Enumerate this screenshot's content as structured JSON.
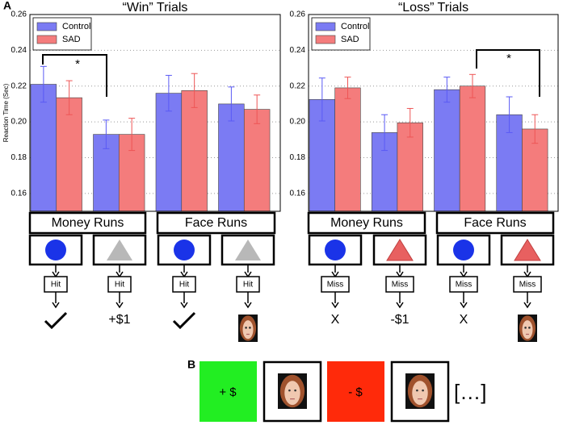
{
  "chart_data": [
    {
      "type": "bar",
      "title": "“Win” Trials",
      "y_label": "Reaction Time (Sec)",
      "categories": [
        null,
        null,
        null,
        null
      ],
      "series": [
        {
          "name": "Control",
          "color": "#7b7bf3",
          "error_color": "#5a5af5",
          "values": [
            0.221,
            0.193,
            0.216,
            0.21
          ],
          "errors": [
            0.01,
            0.008,
            0.01,
            0.0095
          ]
        },
        {
          "name": "SAD",
          "color": "#f47c7c",
          "error_color": "#ee5555",
          "values": [
            0.2135,
            0.193,
            0.2175,
            0.207
          ],
          "errors": [
            0.0095,
            0.009,
            0.0095,
            0.008
          ]
        }
      ],
      "ylim": [
        0.15,
        0.26
      ],
      "yticks": [
        0.16,
        0.18,
        {
          "value": 0.2,
          "label": "0.20"
        },
        0.22,
        0.24,
        0.26
      ],
      "grid": true,
      "legend": "upper-left",
      "annotations": [
        "*"
      ]
    },
    {
      "type": "bar",
      "title": "“Loss” Trials",
      "categories": [
        null,
        null,
        null,
        null
      ],
      "series": [
        {
          "name": "Control",
          "color": "#7b7bf3",
          "error_color": "#5a5af5",
          "values": [
            0.2125,
            0.194,
            0.218,
            0.204
          ],
          "errors": [
            0.012,
            0.01,
            0.007,
            0.01
          ]
        },
        {
          "name": "SAD",
          "color": "#f47c7c",
          "error_color": "#ee5555",
          "values": [
            0.219,
            0.1995,
            0.22,
            0.196
          ],
          "errors": [
            0.006,
            0.008,
            0.0065,
            0.008
          ]
        }
      ],
      "ylim": [
        0.15,
        0.26
      ],
      "yticks": [
        0.16,
        0.18,
        {
          "value": 0.2,
          "label": "0.20"
        },
        0.22,
        0.24,
        0.26
      ],
      "grid": true,
      "legend": "upper-left",
      "annotations": [
        "*"
      ]
    }
  ],
  "panel_labels": [
    "A",
    "B"
  ],
  "schedule": [
    {
      "runs": [
        "Money Runs",
        "Face Runs"
      ],
      "responses": [
        "Hit",
        "Hit",
        "Hit",
        "Hit"
      ],
      "outcome_texts": [
        "+$1"
      ]
    },
    {
      "runs": [
        "Money Runs",
        "Face Runs"
      ],
      "responses": [
        "Miss",
        "Miss",
        "Miss",
        "Miss"
      ],
      "outcome_texts": [
        "X",
        "-$1",
        "X"
      ]
    }
  ],
  "sequence": [
    "+ $",
    "- $",
    "[…]"
  ]
}
